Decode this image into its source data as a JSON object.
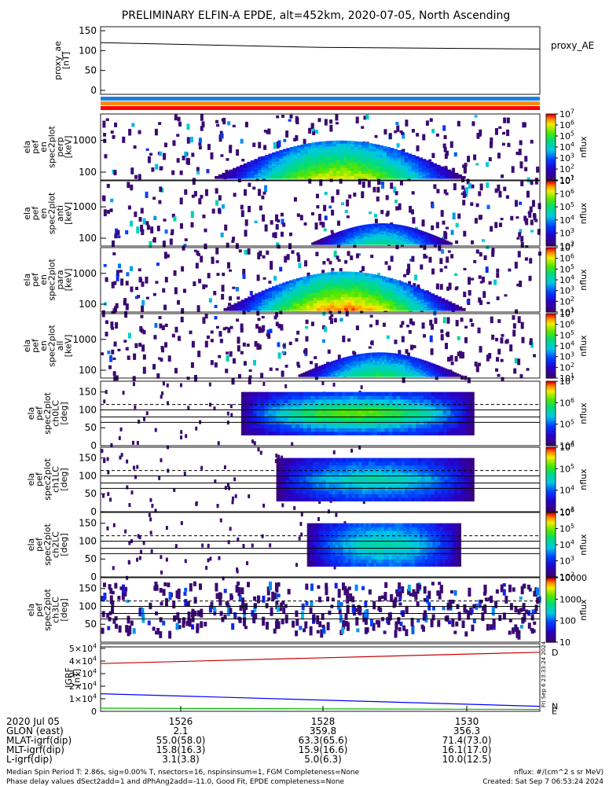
{
  "title": "PRELIMINARY ELFIN-A EPDE, alt=452km, 2020-07-05, North Ascending",
  "right_stamp": "Fri Sep  6 23:33:24 2024",
  "colors": {
    "strip_blue": "#1e7fe0",
    "strip_orange": "#ff8c00",
    "strip_red": "#ff0000",
    "igrf_red": "#cc0000",
    "igrf_blue": "#0000ff",
    "igrf_green": "#00bb00"
  },
  "chart_data": [
    {
      "type": "line",
      "id": "proxy_ae",
      "ylabel": [
        "proxy_ae",
        "[nT]"
      ],
      "yticks": [
        "150",
        "100",
        "50",
        "0"
      ],
      "ylim": [
        -10,
        160
      ],
      "legend": "proxy_AE",
      "series": [
        {
          "name": "proxy_AE",
          "x": [
            0,
            0.5,
            1
          ],
          "values": [
            120,
            108,
            104
          ]
        }
      ]
    },
    {
      "type": "line",
      "id": "status_strips",
      "series": [
        {
          "name": "blue",
          "color": "#1e7fe0"
        },
        {
          "name": "orange",
          "color": "#ff8c00"
        },
        {
          "name": "red",
          "color": "#ff0000"
        }
      ]
    },
    {
      "type": "heatmap",
      "id": "pef_en_perp",
      "ylabel": [
        "ela",
        "pef",
        "en",
        "spec2plot",
        "perp",
        "[keV]"
      ],
      "yticks": [
        "1000",
        "100"
      ],
      "scale": "log",
      "colorbar": {
        "label": "nflux",
        "ticks": [
          "10^7",
          "10^6",
          "10^5",
          "10^4",
          "10^3",
          "10^2",
          "10^1"
        ]
      }
    },
    {
      "type": "heatmap",
      "id": "pef_en_anti",
      "ylabel": [
        "ela",
        "pef",
        "en",
        "spec2plot",
        "anti",
        "[keV]"
      ],
      "yticks": [
        "1000",
        "100"
      ],
      "scale": "log",
      "colorbar": {
        "label": "nflux",
        "ticks": [
          "10^7",
          "10^6",
          "10^5",
          "10^4",
          "10^3",
          "10^2"
        ]
      }
    },
    {
      "type": "heatmap",
      "id": "pef_en_para",
      "ylabel": [
        "ela",
        "pef",
        "en",
        "spec2plot",
        "para",
        "[keV]"
      ],
      "yticks": [
        "1000",
        "100"
      ],
      "scale": "log",
      "colorbar": {
        "label": "nflux",
        "ticks": [
          "10^7",
          "10^6",
          "10^5",
          "10^4",
          "10^3",
          "10^2",
          "10^1"
        ]
      }
    },
    {
      "type": "heatmap",
      "id": "pef_en_all",
      "ylabel": [
        "ela",
        "pef",
        "en",
        "spec2plot",
        "all",
        "[keV]"
      ],
      "yticks": [
        "1000",
        "100"
      ],
      "scale": "log",
      "colorbar": {
        "label": "nflux",
        "ticks": [
          "10^7",
          "10^6",
          "10^5",
          "10^4",
          "10^3",
          "10^2",
          "10^1"
        ]
      }
    },
    {
      "type": "heatmap",
      "id": "ch0LC",
      "ylabel": [
        "ela",
        "pef",
        "spec2plot",
        "ch0LC",
        "[deg]"
      ],
      "yticks": [
        "150",
        "100",
        "50",
        "0"
      ],
      "ylim": [
        0,
        180
      ],
      "colorbar": {
        "label": "nflux",
        "ticks": [
          "10^7",
          "10^6",
          "10^5",
          "10^4"
        ]
      }
    },
    {
      "type": "heatmap",
      "id": "ch1LC",
      "ylabel": [
        "ela",
        "pef",
        "spec2plot",
        "ch1LC",
        "[deg]"
      ],
      "yticks": [
        "150",
        "100",
        "50",
        "0"
      ],
      "ylim": [
        0,
        180
      ],
      "colorbar": {
        "label": "nflux",
        "ticks": [
          "10^6",
          "10^5",
          "10^4",
          "10^3"
        ]
      }
    },
    {
      "type": "heatmap",
      "id": "ch2LC",
      "ylabel": [
        "ela",
        "pef",
        "spec2plot",
        "ch2LC",
        "[deg]"
      ],
      "yticks": [
        "150",
        "100",
        "50",
        "0"
      ],
      "ylim": [
        0,
        180
      ],
      "colorbar": {
        "label": "nflux",
        "ticks": [
          "10^6",
          "10^5",
          "10^4",
          "10^3",
          "10^2"
        ]
      }
    },
    {
      "type": "heatmap",
      "id": "ch3LC",
      "ylabel": [
        "ela",
        "pef",
        "spec2plot",
        "ch3LC",
        "[deg]"
      ],
      "yticks": [
        "150",
        "100",
        "50"
      ],
      "ylim": [
        0,
        180
      ],
      "colorbar": {
        "label": "nflux",
        "ticks": [
          "10000",
          "1000",
          "100",
          "10"
        ]
      }
    },
    {
      "type": "line",
      "id": "igrf",
      "ylabel": [
        "IGRF",
        "[nT]"
      ],
      "yticks": [
        "5×10^4",
        "4×10^4",
        "3×10^4",
        "2×10^4",
        "1×10^4",
        "0"
      ],
      "ylim": [
        0,
        50000
      ],
      "series": [
        {
          "name": "D",
          "color": "#cc0000",
          "x": [
            0,
            1
          ],
          "values": [
            38000,
            47000
          ]
        },
        {
          "name": "N",
          "color": "#0000ff",
          "x": [
            0,
            1
          ],
          "values": [
            14000,
            4000
          ]
        },
        {
          "name": "E",
          "color": "#00bb00",
          "x": [
            0,
            1
          ],
          "values": [
            2500,
            1500
          ]
        }
      ],
      "end_labels": [
        "D",
        "N",
        "E"
      ]
    }
  ],
  "footer": {
    "rows": [
      {
        "label": "2020 Jul 05",
        "values": [
          "1526",
          "1528",
          "1530"
        ]
      },
      {
        "label": "GLON (east)",
        "values": [
          "2.1",
          "359.8",
          "356.3"
        ]
      },
      {
        "label": "MLAT-igrf(dip)",
        "values": [
          "55.0(58.0)",
          "63.3(65.6)",
          "71.4(73.0)"
        ]
      },
      {
        "label": "MLT-igrf(dip)",
        "values": [
          "15.8(16.3)",
          "15.9(16.6)",
          "16.1(17.0)"
        ]
      },
      {
        "label": "L-igrf(dip)",
        "values": [
          "3.1(3.8)",
          "5.0(6.3)",
          "10.0(12.5)"
        ]
      }
    ],
    "line1": "Median Spin Period T: 2.86s, sig=0.00% T, nsectors=16, nspinsinsum=1, FGM Completeness=None",
    "line2": "Phase delay values dSect2add=1 and dPhAng2add=-11.0, Good Fit, EPDE completeness=None",
    "units": "nflux: #/(cm^2 s sr MeV)",
    "created": "Created: Sat Sep  7 06:53:24 2024"
  }
}
